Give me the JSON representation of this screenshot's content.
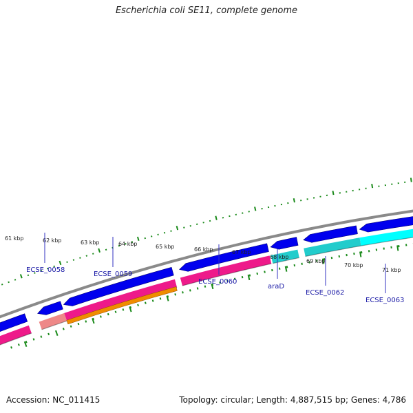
{
  "title": "Escherichia coli SE11, complete genome",
  "footer": {
    "accession": "Accession: NC_011415",
    "summary": "Topology: circular; Length: 4,887,515 bp; Genes: 4,786"
  },
  "colors": {
    "backbone": "#8a8a8a",
    "forward_cds": "#0000ee",
    "tick": "#1a8a1a",
    "label": "#1a1aa6",
    "pink": "#ee1a8a",
    "orange": "#f08c00",
    "salmon": "#ee8888",
    "teal": "#22cccc",
    "cyan": "#00ffff"
  },
  "scale": {
    "ticks": [
      "61 kbp",
      "62 kbp",
      "63 kbp",
      "64 kbp",
      "65 kbp",
      "66 kbp",
      "67 kbp",
      "68 kbp",
      "69 kbp",
      "70 kbp",
      "71 kbp"
    ]
  },
  "genes": [
    {
      "label": "ECSE_0058",
      "category": "salmon"
    },
    {
      "label": "ECSE_0059",
      "category": "orange"
    },
    {
      "label": "ECSE_0060",
      "category": "pink"
    },
    {
      "label": "araD",
      "category": "teal"
    },
    {
      "label": "ECSE_0062",
      "category": "teal"
    },
    {
      "label": "ECSE_0063",
      "category": "cyan"
    }
  ]
}
